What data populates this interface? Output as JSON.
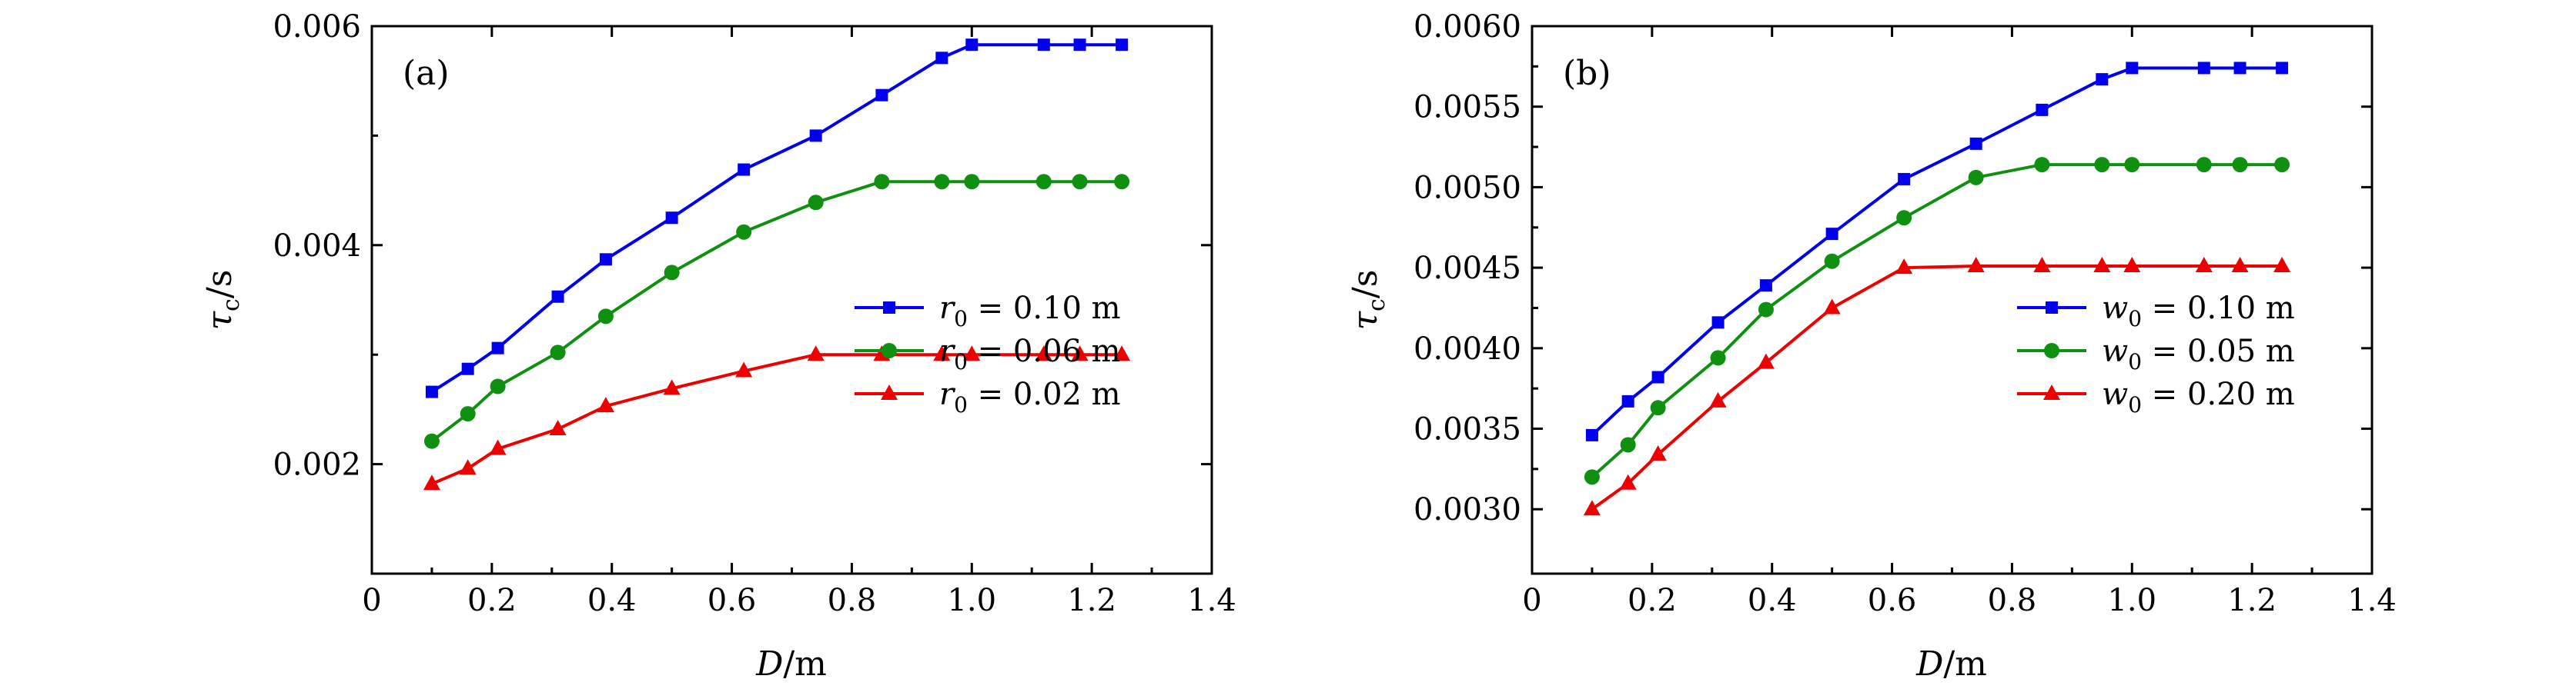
{
  "chart_data": [
    {
      "type": "line",
      "panel_label": "(a)",
      "xlabel": "D/m",
      "ylabel": "τc/s",
      "xlim": [
        0,
        1.4
      ],
      "ylim": [
        0.001,
        0.006
      ],
      "xticks": [
        0,
        0.2,
        0.4,
        0.6,
        0.8,
        1.0,
        1.2,
        1.4
      ],
      "xtick_labels": [
        "0",
        "0.2",
        "0.4",
        "0.6",
        "0.8",
        "1.0",
        "1.2",
        "1.4"
      ],
      "yticks": [
        0.002,
        0.004,
        0.006
      ],
      "ytick_labels": [
        "0.002",
        "0.004",
        "0.006"
      ],
      "legend_position": "bottom-right",
      "x": [
        0.1,
        0.16,
        0.21,
        0.31,
        0.39,
        0.5,
        0.62,
        0.74,
        0.85,
        0.95,
        1.0,
        1.12,
        1.18,
        1.25
      ],
      "series": [
        {
          "name": "r0 = 0.10 m",
          "var": "r",
          "value_text": " = 0.10 m",
          "color": "#0000ee",
          "marker": "square",
          "values": [
            0.00266,
            0.00287,
            0.00306,
            0.00353,
            0.00387,
            0.00425,
            0.00469,
            0.005,
            0.00537,
            0.00571,
            0.00583,
            0.00583,
            0.00583,
            0.00583
          ]
        },
        {
          "name": "r0 = 0.06 m",
          "var": "r",
          "value_text": " = 0.06 m",
          "color": "#109010",
          "marker": "circle",
          "values": [
            0.00221,
            0.00246,
            0.00271,
            0.00302,
            0.00335,
            0.00375,
            0.00412,
            0.00439,
            0.00458,
            0.00458,
            0.00458,
            0.00458,
            0.00458,
            0.00458
          ]
        },
        {
          "name": "r0 = 0.02 m",
          "var": "r",
          "value_text": " = 0.02 m",
          "color": "#ee0000",
          "marker": "triangle",
          "values": [
            0.00182,
            0.00196,
            0.00214,
            0.00232,
            0.00253,
            0.00269,
            0.00285,
            0.003,
            0.003,
            0.003,
            0.003,
            0.003,
            0.003,
            0.003
          ]
        }
      ]
    },
    {
      "type": "line",
      "panel_label": "(b)",
      "xlabel": "D/m",
      "ylabel": "τc/s",
      "xlim": [
        0,
        1.4
      ],
      "ylim": [
        0.0026,
        0.006
      ],
      "xticks": [
        0,
        0.2,
        0.4,
        0.6,
        0.8,
        1.0,
        1.2,
        1.4
      ],
      "xtick_labels": [
        "0",
        "0.2",
        "0.4",
        "0.6",
        "0.8",
        "1.0",
        "1.2",
        "1.4"
      ],
      "yticks": [
        0.003,
        0.0035,
        0.004,
        0.0045,
        0.005,
        0.0055,
        0.006
      ],
      "ytick_labels": [
        "0.0030",
        "0.0035",
        "0.0040",
        "0.0045",
        "0.0050",
        "0.0055",
        "0.0060"
      ],
      "legend_position": "bottom-right",
      "x": [
        0.1,
        0.16,
        0.21,
        0.31,
        0.39,
        0.5,
        0.62,
        0.74,
        0.85,
        0.95,
        1.0,
        1.12,
        1.18,
        1.25
      ],
      "series": [
        {
          "name": "w0 = 0.10 m",
          "var": "w",
          "value_text": " = 0.10 m",
          "color": "#0000ee",
          "marker": "square",
          "values": [
            0.00346,
            0.00367,
            0.00382,
            0.00416,
            0.00439,
            0.00471,
            0.00505,
            0.00527,
            0.00548,
            0.00567,
            0.00574,
            0.00574,
            0.00574,
            0.00574
          ]
        },
        {
          "name": "w0 = 0.05 m",
          "var": "w",
          "value_text": " = 0.05 m",
          "color": "#109010",
          "marker": "circle",
          "values": [
            0.0032,
            0.0034,
            0.00363,
            0.00394,
            0.00424,
            0.00454,
            0.00481,
            0.00506,
            0.00514,
            0.00514,
            0.00514,
            0.00514,
            0.00514,
            0.00514
          ]
        },
        {
          "name": "w0 = 0.20 m",
          "var": "w",
          "value_text": " = 0.20 m",
          "color": "#ee0000",
          "marker": "triangle",
          "values": [
            0.003,
            0.00316,
            0.00334,
            0.00367,
            0.00391,
            0.00425,
            0.0045,
            0.00451,
            0.00451,
            0.00451,
            0.00451,
            0.00451,
            0.00451,
            0.00451
          ]
        }
      ]
    }
  ]
}
